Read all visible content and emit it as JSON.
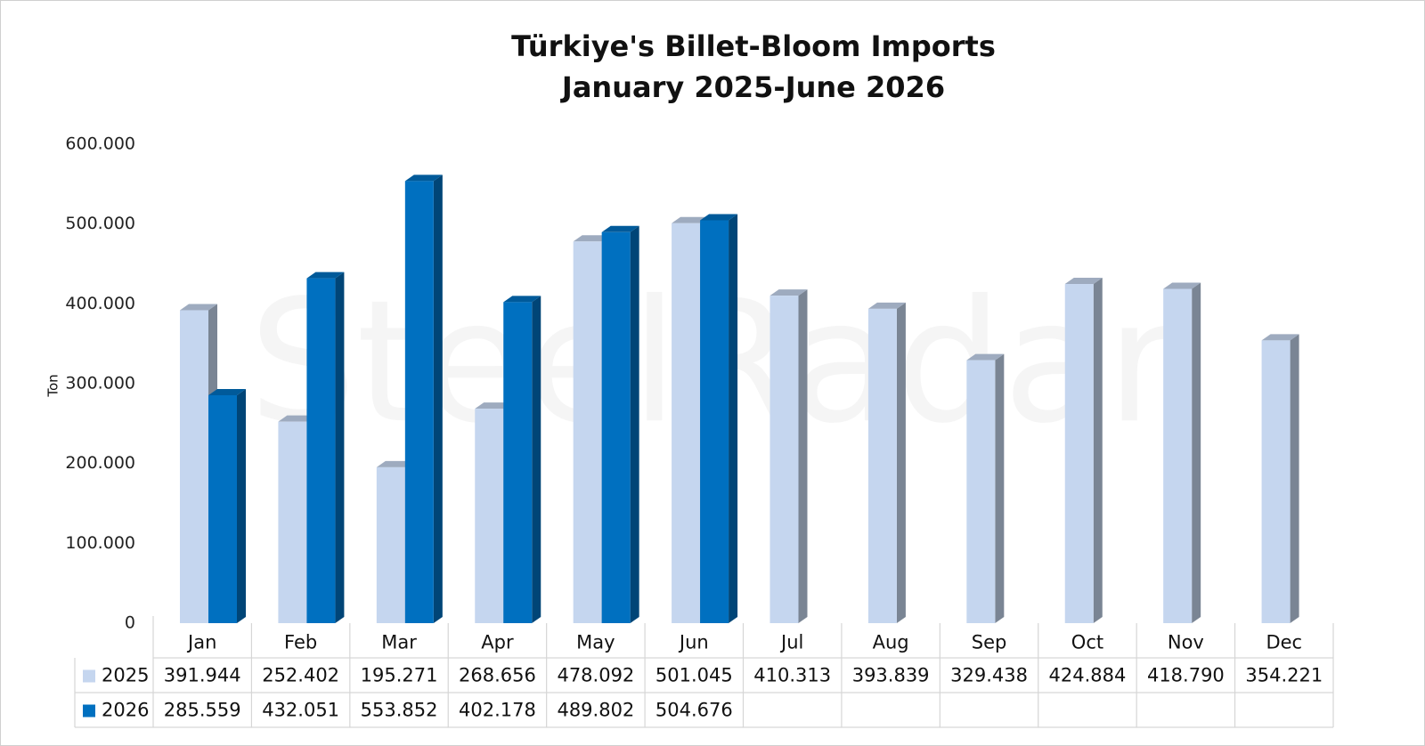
{
  "chart_data": {
    "type": "bar3d",
    "title": "Türkiye's Billet-Bloom Imports",
    "subtitle": "January 2025-June 2026",
    "y_label": "Ton",
    "watermark": "SteelRadar",
    "categories": [
      "Jan",
      "Feb",
      "Mar",
      "Apr",
      "May",
      "Jun",
      "Jul",
      "Aug",
      "Sep",
      "Oct",
      "Nov",
      "Dec"
    ],
    "series": [
      {
        "name": "2025",
        "color": "#c5d6ef",
        "values": [
          391944,
          252402,
          195271,
          268656,
          478092,
          501045,
          410313,
          393839,
          329438,
          424884,
          418790,
          354221
        ],
        "value_labels": [
          "391.944",
          "252.402",
          "195.271",
          "268.656",
          "478.092",
          "501.045",
          "410.313",
          "393.839",
          "329.438",
          "424.884",
          "418.790",
          "354.221"
        ]
      },
      {
        "name": "2026",
        "color": "#0070c0",
        "values": [
          285559,
          432051,
          553852,
          402178,
          489802,
          504676,
          null,
          null,
          null,
          null,
          null,
          null
        ],
        "value_labels": [
          "285.559",
          "432.051",
          "553.852",
          "402.178",
          "489.802",
          "504.676",
          null,
          null,
          null,
          null,
          null,
          null
        ]
      }
    ],
    "ylim": [
      0,
      600000
    ],
    "yticks": [
      0,
      {
        "value": 100000,
        "label": "100.000"
      },
      {
        "value": 200000,
        "label": "200.000"
      },
      {
        "value": 300000,
        "label": "300.000"
      },
      {
        "value": 400000,
        "label": "400.000"
      },
      {
        "value": 500000,
        "label": "500.000"
      },
      {
        "value": 600000,
        "label": "600.000"
      }
    ],
    "grid": false,
    "data_table": true
  }
}
